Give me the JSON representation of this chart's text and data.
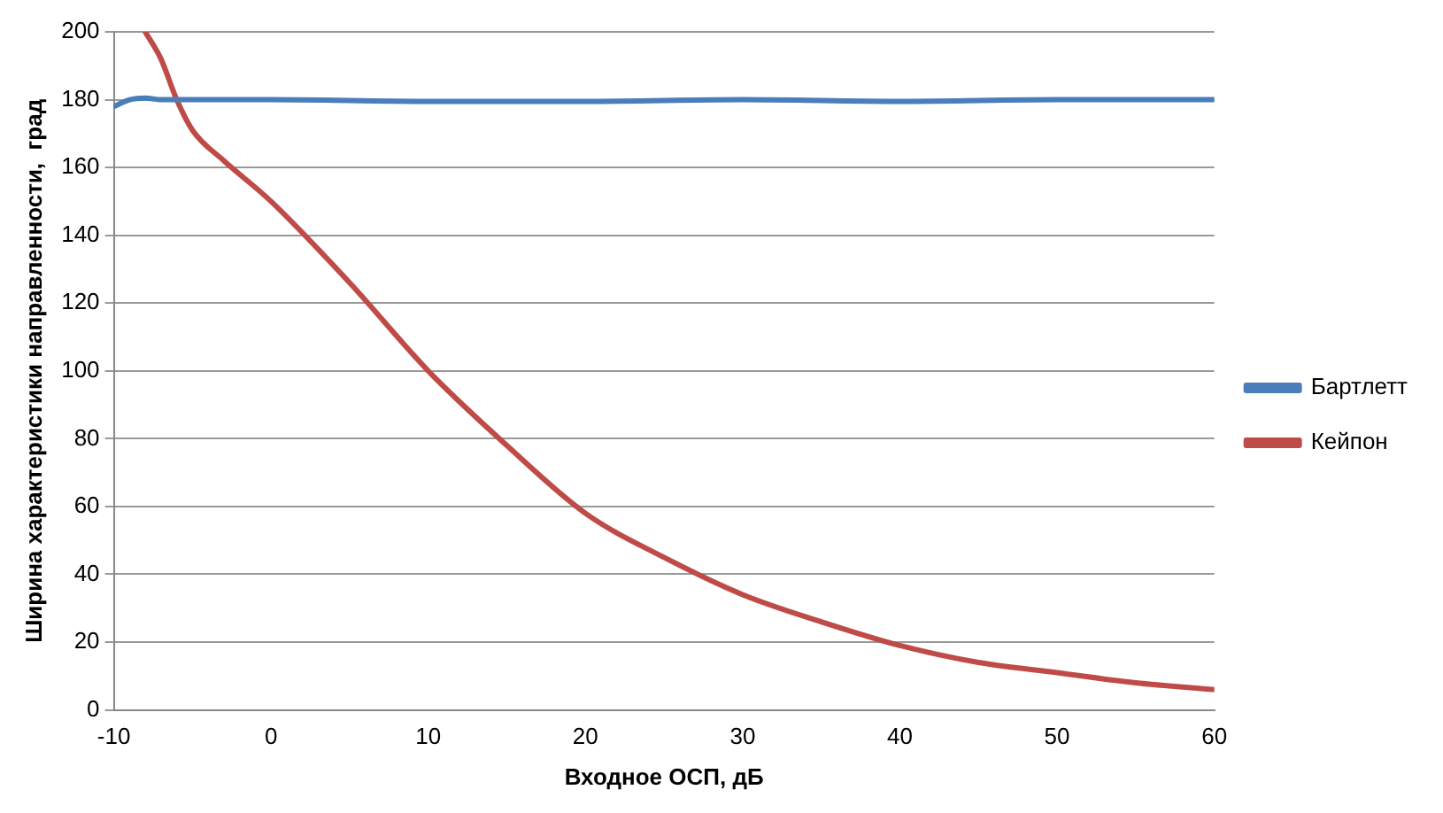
{
  "chart_data": {
    "type": "line",
    "xlabel": "Входное ОСП, дБ",
    "ylabel": "Ширина характеристики направленности,  град",
    "xlim": [
      -10,
      60
    ],
    "xticks": [
      -10,
      0,
      10,
      20,
      30,
      40,
      50,
      60
    ],
    "ylim": [
      0,
      200
    ],
    "yticks": [
      0,
      20,
      40,
      60,
      80,
      100,
      120,
      140,
      160,
      180,
      200
    ],
    "grid": "y",
    "legend": "right",
    "marker": "none",
    "line_style": "solid",
    "series": [
      {
        "name": "Бартлетт",
        "color": "#4a7ebb",
        "x": [
          -10,
          -9,
          -8,
          -7,
          -6,
          -4,
          0,
          10,
          20,
          30,
          40,
          50,
          60
        ],
        "values": [
          178,
          180,
          180.5,
          180,
          180,
          180,
          180,
          179.5,
          179.5,
          180,
          179.5,
          180,
          180
        ]
      },
      {
        "name": "Кейпон",
        "color": "#be4b48",
        "x": [
          -8,
          -7,
          -6,
          -5,
          -3,
          0,
          5,
          10,
          15,
          20,
          25,
          30,
          35,
          40,
          45,
          50,
          55,
          60
        ],
        "values": [
          200,
          192,
          180,
          171,
          162,
          150,
          126,
          100,
          78,
          58,
          45,
          34,
          26,
          19,
          14,
          11,
          8,
          6
        ]
      }
    ]
  }
}
